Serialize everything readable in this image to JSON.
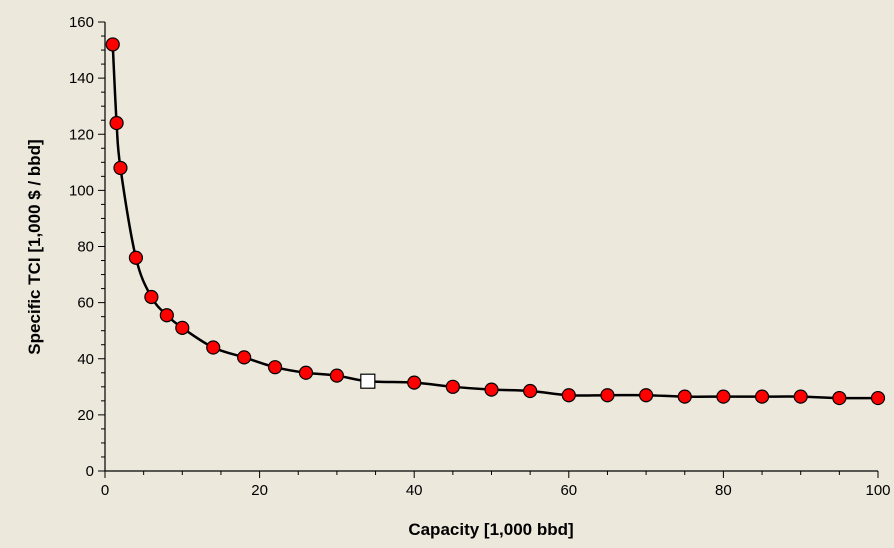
{
  "chart_data": {
    "type": "scatter",
    "xlabel": "Capacity  [1,000 bbd]",
    "ylabel": "Specific TCI  [1,000 $ / bbd]",
    "xlim": [
      0,
      100
    ],
    "ylim": [
      0,
      160
    ],
    "x_ticks": [
      0,
      20,
      40,
      60,
      80,
      100
    ],
    "y_ticks": [
      0,
      20,
      40,
      60,
      80,
      100,
      120,
      140,
      160
    ],
    "grid": false,
    "legend": "none",
    "colors": {
      "background": "#ede8dc",
      "marker_fill": "#ff0000",
      "marker_edge": "#000000",
      "highlight_fill": "#ffffff",
      "curve": "#000000"
    },
    "series": [
      {
        "marker": "circle",
        "x": [
          1,
          1.5,
          2,
          4,
          6,
          8,
          10,
          14,
          18,
          22,
          26,
          30,
          40,
          45,
          50,
          55,
          60,
          65,
          70,
          75,
          80,
          85,
          90,
          95,
          100
        ],
        "y": [
          152,
          124,
          108,
          76,
          62,
          55.5,
          51,
          44,
          40.5,
          37,
          35,
          34,
          31.5,
          30,
          29,
          28.5,
          27,
          27,
          27,
          26.5,
          26.5,
          26.5,
          26.5,
          26,
          26
        ]
      },
      {
        "marker": "square",
        "x": [
          34
        ],
        "y": [
          32
        ]
      }
    ],
    "fit_curve": {
      "x": [
        1,
        1.5,
        2,
        4,
        6,
        8,
        10,
        14,
        18,
        22,
        26,
        30,
        34,
        40,
        45,
        50,
        55,
        60,
        65,
        70,
        75,
        80,
        85,
        90,
        95,
        100
      ],
      "y": [
        152,
        124,
        108,
        76,
        62,
        55.5,
        51,
        44,
        40.5,
        37,
        35,
        34,
        32,
        31.5,
        30,
        29,
        28.5,
        27,
        27,
        27,
        26.5,
        26.5,
        26.5,
        26.5,
        26,
        26
      ]
    }
  }
}
